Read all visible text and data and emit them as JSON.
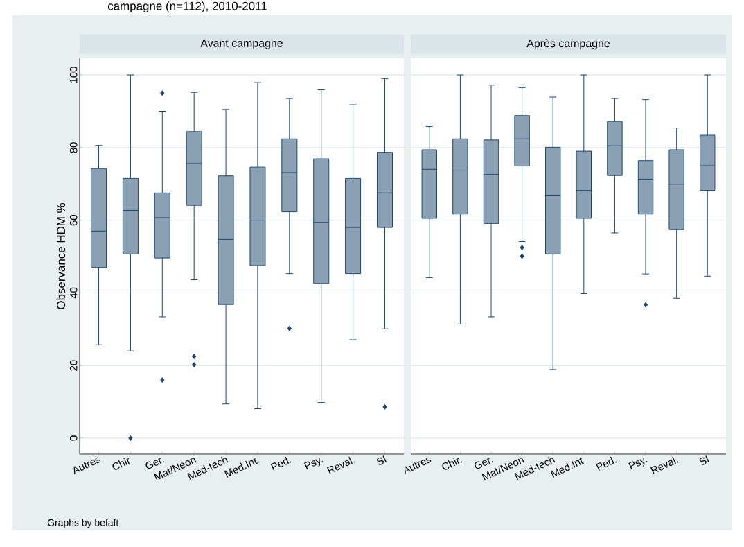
{
  "chart_data": [
    {
      "type": "box",
      "title": "Avant campagne",
      "ylabel": "Observance HDM %",
      "annotations": [
        "campagne (n=112), 2010-2011",
        "Graphs by befaft"
      ],
      "categories": [
        "Autres",
        "Chir.",
        "Ger.",
        "Mat/Neon",
        "Med-tech",
        "Med.Int.",
        "Ped.",
        "Psy.",
        "Reval.",
        "SI"
      ],
      "series": [
        {
          "color": "#8ca0b4",
          "boxes": [
            {
              "low": 25.7,
              "q1": 47,
              "median": 57,
              "q3": 74.2,
              "high": 80.6
            },
            {
              "low": 24,
              "q1": 50.7,
              "median": 62.7,
              "q3": 71.5,
              "high": 100,
              "outliers": [
                0
              ]
            },
            {
              "low": 33.4,
              "q1": 49.6,
              "median": 60.7,
              "q3": 67.5,
              "high": 90,
              "outliers": [
                95,
                16
              ]
            },
            {
              "low": 43.6,
              "q1": 64.1,
              "median": 75.6,
              "q3": 84.4,
              "high": 95.2,
              "outliers": [
                22.5,
                20.2
              ]
            },
            {
              "low": 9.4,
              "q1": 36.8,
              "median": 54.7,
              "q3": 72.2,
              "high": 90.5
            },
            {
              "low": 8.1,
              "q1": 47.5,
              "median": 60,
              "q3": 74.6,
              "high": 97.9
            },
            {
              "low": 45.3,
              "q1": 62.3,
              "median": 73.1,
              "q3": 82.4,
              "high": 93.5,
              "outliers": [
                30.2
              ]
            },
            {
              "low": 9.8,
              "q1": 42.6,
              "median": 59.4,
              "q3": 76.9,
              "high": 95.9
            },
            {
              "low": 27.1,
              "q1": 45.3,
              "median": 58,
              "q3": 71.5,
              "high": 91.8
            },
            {
              "low": 30.1,
              "q1": 58,
              "median": 67.5,
              "q3": 78.7,
              "high": 99,
              "outliers": [
                8.6
              ]
            }
          ]
        }
      ],
      "ylim": [
        -4.4,
        104.6
      ],
      "yticks": [
        0,
        20,
        40,
        60,
        80,
        100
      ],
      "grid": "y",
      "marker": "diamond"
    },
    {
      "type": "box",
      "title": "Après campagne",
      "categories": [
        "Autres",
        "Chir.",
        "Ger.",
        "Mat/Neon",
        "Med-tech",
        "Med.Int.",
        "Ped.",
        "Psy.",
        "Reval.",
        "SI"
      ],
      "series": [
        {
          "color": "#8ca0b4",
          "boxes": [
            {
              "low": 44.2,
              "q1": 60.5,
              "median": 74,
              "q3": 79.4,
              "high": 85.8
            },
            {
              "low": 31.4,
              "q1": 61.7,
              "median": 73.6,
              "q3": 82.4,
              "high": 100
            },
            {
              "low": 33.4,
              "q1": 59.1,
              "median": 72.6,
              "q3": 82.1,
              "high": 97.2
            },
            {
              "low": 54.1,
              "q1": 74.9,
              "median": 82.4,
              "q3": 88.8,
              "high": 96.5,
              "outliers": [
                52.5,
                50.1
              ]
            },
            {
              "low": 18.9,
              "q1": 50.7,
              "median": 66.9,
              "q3": 80.1,
              "high": 93.9
            },
            {
              "low": 39.8,
              "q1": 60.5,
              "median": 68.2,
              "q3": 79,
              "high": 100
            },
            {
              "low": 56.5,
              "q1": 72.3,
              "median": 80.5,
              "q3": 87.2,
              "high": 93.5
            },
            {
              "low": 45.2,
              "q1": 61.7,
              "median": 71.3,
              "q3": 76.4,
              "high": 93.2,
              "outliers": [
                36.7
              ]
            },
            {
              "low": 38.5,
              "q1": 57.4,
              "median": 69.9,
              "q3": 79.4,
              "high": 85.4
            },
            {
              "low": 44.6,
              "q1": 68.2,
              "median": 75,
              "q3": 83.4,
              "high": 100
            }
          ]
        }
      ],
      "ylim": [
        -4.4,
        104.6
      ],
      "yticks": [
        0,
        20,
        40,
        60,
        80,
        100
      ],
      "grid": "y",
      "marker": "diamond",
      "tick_labels": "x"
    }
  ]
}
